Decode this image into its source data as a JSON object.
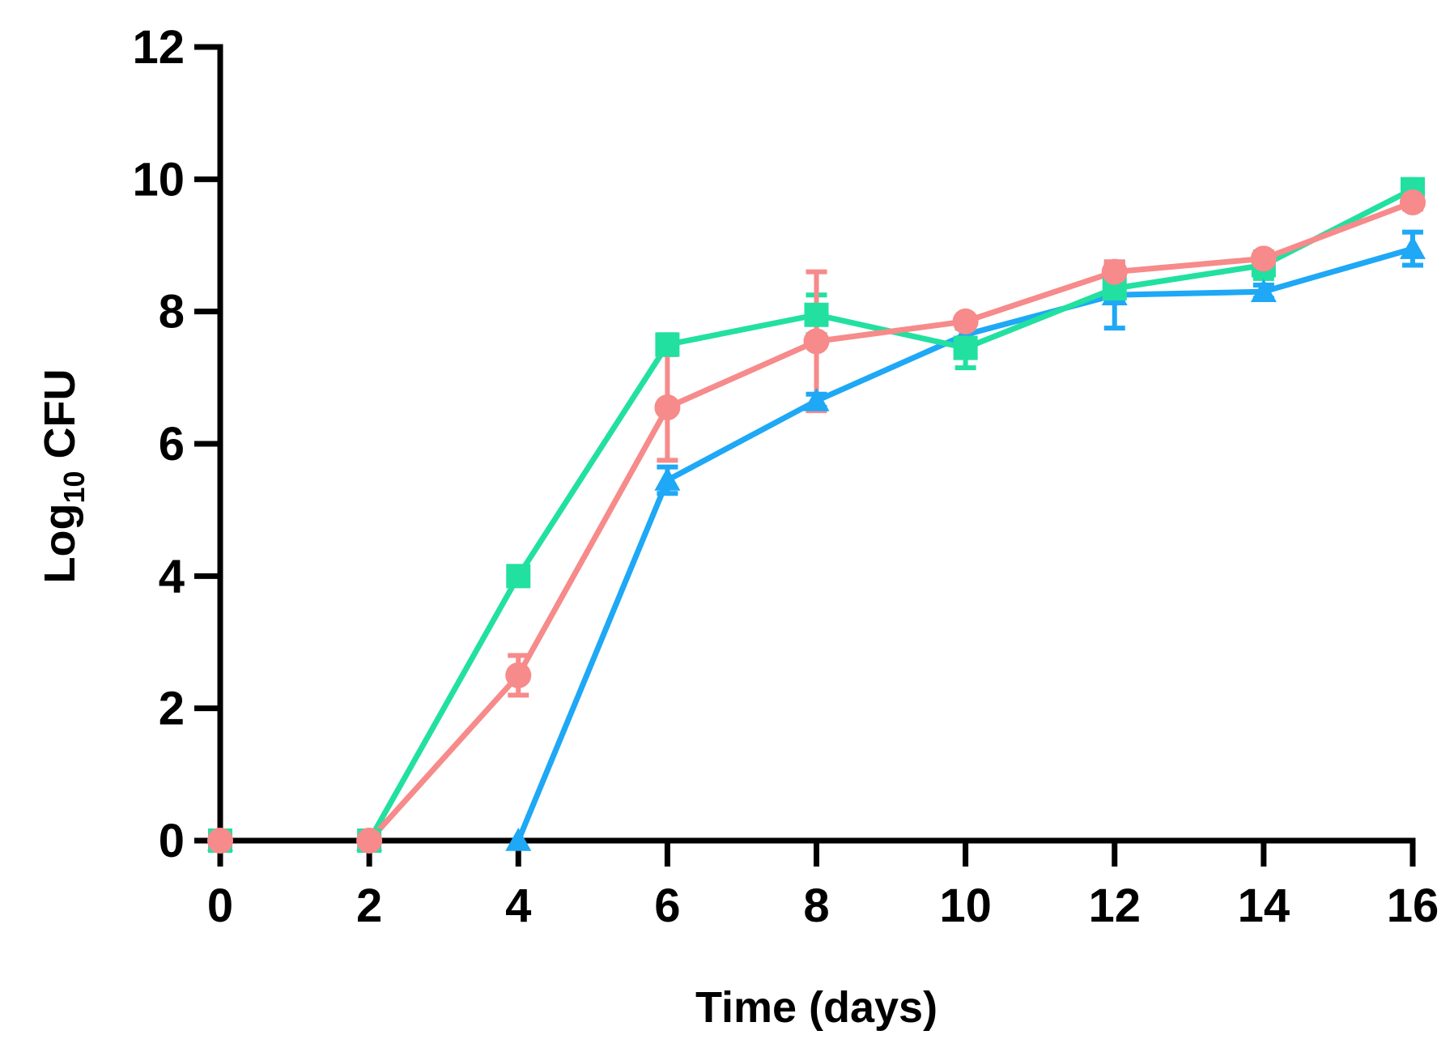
{
  "chart_data": {
    "type": "line",
    "title": "",
    "xlabel": "Time (days)",
    "ylabel": {
      "prefix": "Log",
      "subscript": "10",
      "suffix": " CFU"
    },
    "x": [
      0,
      2,
      4,
      6,
      8,
      10,
      12,
      14,
      16
    ],
    "xlim": [
      0,
      16
    ],
    "ylim": [
      0,
      12
    ],
    "xticks": [
      0,
      2,
      4,
      6,
      8,
      10,
      12,
      14,
      16
    ],
    "yticks": [
      0,
      2,
      4,
      6,
      8,
      10,
      12
    ],
    "grid": false,
    "legend": "none",
    "series": [
      {
        "name": "blue-triangle",
        "color": "#1ea8f6",
        "marker": "triangle",
        "values": [
          0,
          0,
          0,
          5.45,
          6.65,
          7.65,
          8.25,
          8.3,
          8.95
        ],
        "errors": [
          0,
          0,
          0,
          0.2,
          0.1,
          0.1,
          0.5,
          0.1,
          0.25
        ]
      },
      {
        "name": "green-square",
        "color": "#22e0a0",
        "marker": "square",
        "values": [
          0,
          0,
          4.0,
          7.5,
          7.95,
          7.45,
          8.35,
          8.7,
          9.85
        ],
        "errors": [
          0,
          0,
          0.1,
          0.15,
          0.3,
          0.3,
          0.2,
          0.2,
          0.1
        ]
      },
      {
        "name": "pink-circle",
        "color": "#f78a8a",
        "marker": "circle",
        "values": [
          0,
          0,
          2.5,
          6.55,
          7.55,
          7.85,
          8.6,
          8.8,
          9.65
        ],
        "errors": [
          0,
          0,
          0.3,
          0.8,
          1.05,
          0.05,
          0.15,
          0.1,
          0.1
        ]
      }
    ]
  }
}
